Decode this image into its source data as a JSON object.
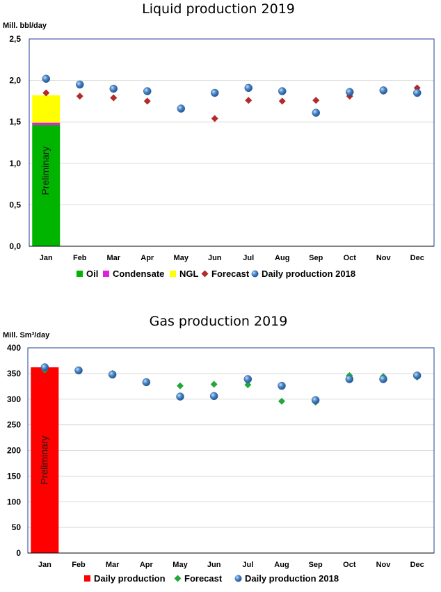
{
  "chart_data": [
    {
      "type": "bar",
      "title": "Liquid production 2019",
      "ylabel": "Mill. bbl/day",
      "ylim": [
        0,
        2.5
      ],
      "y_ticks": [
        "0,0",
        "0,5",
        "1,0",
        "1,5",
        "2,0",
        "2,5"
      ],
      "y_tick_values": [
        0,
        0.5,
        1.0,
        1.5,
        2.0,
        2.5
      ],
      "categories": [
        "Jan",
        "Feb",
        "Mar",
        "Apr",
        "May",
        "Jun",
        "Jul",
        "Aug",
        "Sep",
        "Oct",
        "Nov",
        "Dec"
      ],
      "annotation": "Preliminary",
      "grid": true,
      "legend_position": "bottom",
      "stacked_bars": [
        {
          "name": "Oil",
          "color": "#00b400",
          "values": [
            1.46,
            null,
            null,
            null,
            null,
            null,
            null,
            null,
            null,
            null,
            null,
            null
          ]
        },
        {
          "name": "Condensate",
          "color": "#e020e0",
          "values": [
            0.03,
            null,
            null,
            null,
            null,
            null,
            null,
            null,
            null,
            null,
            null,
            null
          ]
        },
        {
          "name": "NGL",
          "color": "#ffff00",
          "values": [
            0.33,
            null,
            null,
            null,
            null,
            null,
            null,
            null,
            null,
            null,
            null,
            null
          ]
        }
      ],
      "series": [
        {
          "name": "Forecast",
          "marker": "diamond",
          "color": "#b22a2a",
          "values": [
            1.85,
            1.81,
            1.79,
            1.75,
            1.67,
            1.54,
            1.76,
            1.75,
            1.76,
            1.81,
            1.87,
            1.91
          ]
        },
        {
          "name": "Daily production 2018",
          "marker": "circle",
          "color": "#4a86c8",
          "values": [
            2.02,
            1.95,
            1.9,
            1.87,
            1.66,
            1.85,
            1.91,
            1.87,
            1.61,
            1.86,
            1.88,
            1.85
          ]
        }
      ],
      "legend": [
        {
          "label": "Oil",
          "marker": "square",
          "color": "#00b400"
        },
        {
          "label": "Condensate",
          "marker": "square",
          "color": "#e020e0"
        },
        {
          "label": "NGL",
          "marker": "square",
          "color": "#ffff00"
        },
        {
          "label": "Forecast",
          "marker": "diamond",
          "color": "#b22a2a"
        },
        {
          "label": "Daily production 2018",
          "marker": "circle",
          "color": "#4a86c8"
        }
      ]
    },
    {
      "type": "bar",
      "title": "Gas production 2019",
      "ylabel": "Mill. Sm³/day",
      "ylim": [
        0,
        400
      ],
      "y_ticks": [
        "0",
        "50",
        "100",
        "150",
        "200",
        "250",
        "300",
        "350",
        "400"
      ],
      "y_tick_values": [
        0,
        50,
        100,
        150,
        200,
        250,
        300,
        350,
        400
      ],
      "categories": [
        "Jan",
        "Feb",
        "Mar",
        "Apr",
        "May",
        "Jun",
        "Jul",
        "Aug",
        "Sep",
        "Oct",
        "Nov",
        "Dec"
      ],
      "annotation": "Preliminary",
      "grid": true,
      "legend_position": "bottom",
      "stacked_bars": [
        {
          "name": "Daily production",
          "color": "#ff0000",
          "values": [
            362,
            null,
            null,
            null,
            null,
            null,
            null,
            null,
            null,
            null,
            null,
            null
          ]
        }
      ],
      "series": [
        {
          "name": "Forecast",
          "marker": "diamond",
          "color": "#22a83a",
          "values": [
            357,
            356,
            350,
            333,
            326,
            329,
            328,
            296,
            294,
            346,
            344,
            343
          ]
        },
        {
          "name": "Daily production 2018",
          "marker": "circle",
          "color": "#4a86c8",
          "values": [
            362,
            356,
            348,
            333,
            305,
            306,
            339,
            326,
            298,
            339,
            339,
            346
          ]
        }
      ],
      "legend": [
        {
          "label": "Daily production",
          "marker": "square",
          "color": "#ff0000"
        },
        {
          "label": "Forecast",
          "marker": "diamond",
          "color": "#22a83a"
        },
        {
          "label": "Daily production 2018",
          "marker": "circle",
          "color": "#4a86c8"
        }
      ]
    }
  ]
}
